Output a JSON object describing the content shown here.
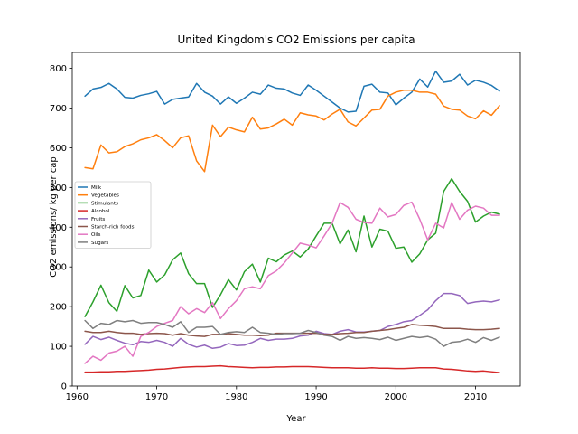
{
  "chart_data": {
    "type": "line",
    "title": "United Kingdom's CO2 Emissions per capita",
    "xlabel": "Year",
    "ylabel": "CO2 emissions/ kg per cap",
    "xlim": [
      1959.4,
      2015.6
    ],
    "ylim": [
      0,
      840
    ],
    "xticks": [
      1960,
      1970,
      1980,
      1990,
      2000,
      2010
    ],
    "yticks": [
      0,
      100,
      200,
      300,
      400,
      500,
      600,
      700,
      800
    ],
    "grid": false,
    "legend_position": "center-left",
    "x": [
      1961,
      1962,
      1963,
      1964,
      1965,
      1966,
      1967,
      1968,
      1969,
      1970,
      1971,
      1972,
      1973,
      1974,
      1975,
      1976,
      1977,
      1978,
      1979,
      1980,
      1981,
      1982,
      1983,
      1984,
      1985,
      1986,
      1987,
      1988,
      1989,
      1990,
      1991,
      1992,
      1993,
      1994,
      1995,
      1996,
      1997,
      1998,
      1999,
      2000,
      2001,
      2002,
      2003,
      2004,
      2005,
      2006,
      2007,
      2008,
      2009,
      2010,
      2011,
      2012,
      2013
    ],
    "series": [
      {
        "name": "Milk",
        "color": "#1f77b4",
        "values": [
          730,
          748,
          752,
          762,
          748,
          727,
          725,
          732,
          736,
          742,
          710,
          722,
          725,
          728,
          762,
          740,
          730,
          710,
          728,
          712,
          725,
          740,
          735,
          758,
          750,
          748,
          738,
          732,
          758,
          745,
          730,
          715,
          700,
          690,
          692,
          755,
          760,
          740,
          738,
          708,
          725,
          740,
          773,
          753,
          793,
          765,
          768,
          785,
          758,
          770,
          765,
          757,
          743
        ]
      },
      {
        "name": "Vegetables",
        "color": "#ff7f0e",
        "values": [
          550,
          547,
          607,
          587,
          590,
          603,
          610,
          620,
          625,
          633,
          618,
          600,
          625,
          630,
          567,
          540,
          657,
          628,
          652,
          645,
          640,
          677,
          647,
          650,
          660,
          672,
          657,
          688,
          683,
          680,
          670,
          685,
          697,
          665,
          655,
          675,
          695,
          697,
          730,
          740,
          745,
          745,
          740,
          740,
          735,
          705,
          697,
          695,
          680,
          673,
          693,
          682,
          706
        ]
      },
      {
        "name": "Stimulants",
        "color": "#2ca02c",
        "values": [
          175,
          212,
          254,
          210,
          188,
          253,
          222,
          228,
          292,
          262,
          280,
          318,
          335,
          283,
          258,
          258,
          198,
          230,
          268,
          242,
          288,
          307,
          262,
          322,
          313,
          330,
          340,
          325,
          345,
          378,
          410,
          410,
          358,
          393,
          338,
          428,
          350,
          395,
          390,
          347,
          350,
          312,
          333,
          368,
          385,
          490,
          522,
          490,
          465,
          413,
          428,
          438,
          433
        ]
      },
      {
        "name": "Alcohol",
        "color": "#d62728",
        "values": [
          35,
          35,
          36,
          36,
          37,
          37,
          38,
          39,
          40,
          42,
          43,
          45,
          47,
          48,
          49,
          49,
          50,
          51,
          49,
          48,
          47,
          46,
          47,
          47,
          48,
          48,
          49,
          49,
          49,
          48,
          47,
          46,
          46,
          46,
          45,
          45,
          46,
          45,
          45,
          44,
          44,
          45,
          46,
          46,
          46,
          43,
          42,
          40,
          38,
          37,
          38,
          36,
          34
        ]
      },
      {
        "name": "Fruits",
        "color": "#9467bd",
        "values": [
          105,
          125,
          117,
          123,
          115,
          108,
          104,
          112,
          110,
          115,
          110,
          100,
          120,
          105,
          98,
          103,
          95,
          98,
          107,
          102,
          103,
          110,
          120,
          115,
          118,
          118,
          120,
          126,
          128,
          138,
          132,
          130,
          138,
          142,
          136,
          136,
          138,
          140,
          150,
          155,
          162,
          165,
          178,
          192,
          215,
          233,
          233,
          228,
          208,
          212,
          214,
          212,
          217
        ]
      },
      {
        "name": "Starch-rich foods",
        "color": "#8c564b",
        "values": [
          138,
          135,
          135,
          138,
          135,
          133,
          133,
          130,
          132,
          133,
          132,
          128,
          132,
          128,
          126,
          125,
          130,
          130,
          132,
          130,
          128,
          128,
          127,
          128,
          133,
          133,
          133,
          133,
          133,
          133,
          130,
          130,
          132,
          133,
          135,
          135,
          138,
          140,
          142,
          145,
          148,
          155,
          153,
          152,
          150,
          145,
          145,
          145,
          143,
          142,
          142,
          143,
          145
        ]
      },
      {
        "name": "Oils",
        "color": "#e377c2",
        "values": [
          57,
          75,
          65,
          83,
          88,
          100,
          75,
          125,
          135,
          150,
          158,
          165,
          200,
          182,
          195,
          185,
          210,
          170,
          195,
          215,
          245,
          250,
          245,
          278,
          290,
          310,
          335,
          360,
          355,
          348,
          378,
          410,
          462,
          450,
          420,
          412,
          410,
          448,
          426,
          432,
          455,
          463,
          420,
          368,
          410,
          398,
          462,
          420,
          443,
          453,
          448,
          430,
          430
        ]
      },
      {
        "name": "Sugars",
        "color": "#7f7f7f",
        "values": [
          165,
          145,
          158,
          155,
          165,
          162,
          165,
          158,
          160,
          160,
          155,
          148,
          162,
          135,
          148,
          148,
          150,
          130,
          135,
          137,
          135,
          148,
          135,
          133,
          130,
          132,
          132,
          133,
          140,
          135,
          128,
          125,
          115,
          125,
          120,
          122,
          120,
          117,
          123,
          115,
          120,
          125,
          122,
          125,
          118,
          100,
          110,
          112,
          118,
          110,
          122,
          115,
          123
        ]
      }
    ]
  }
}
